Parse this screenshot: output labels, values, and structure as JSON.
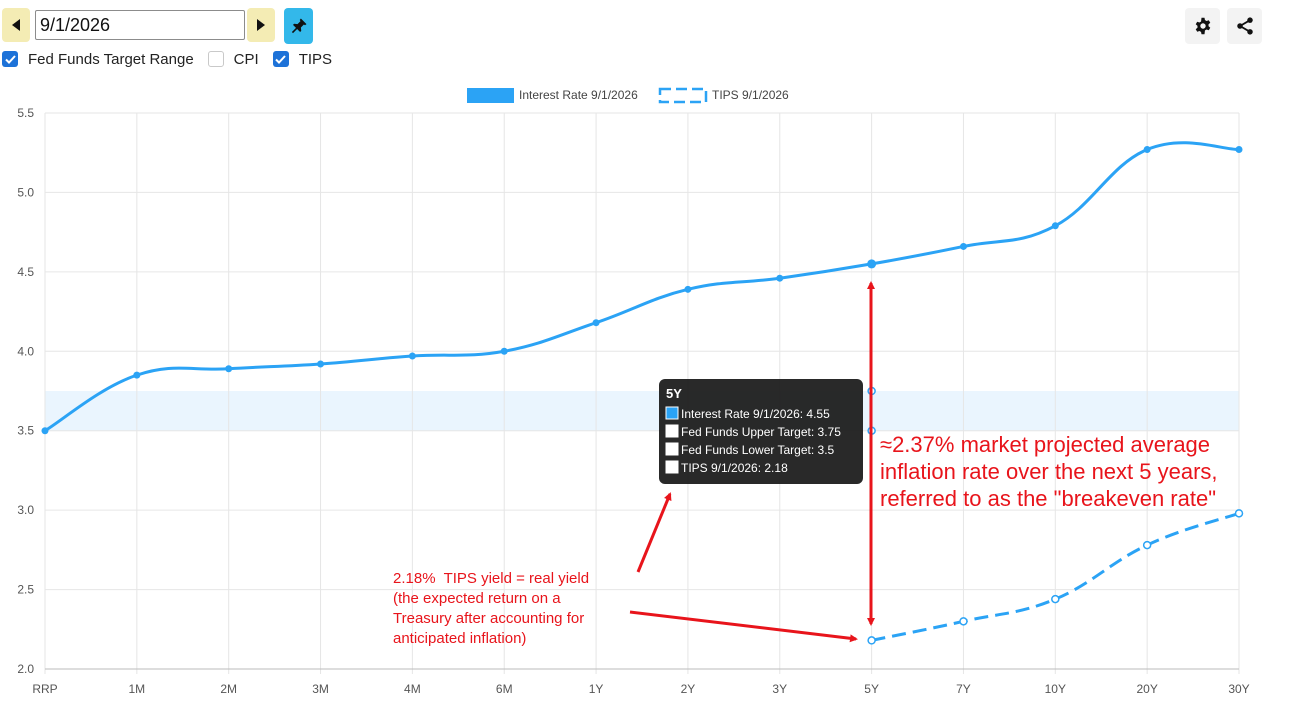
{
  "toolbar": {
    "date_value": "9/1/2026",
    "checkboxes": [
      {
        "label": "Fed Funds Target Range",
        "checked": true
      },
      {
        "label": "CPI",
        "checked": false
      },
      {
        "label": "TIPS",
        "checked": true
      }
    ],
    "icons": {
      "prev": "triangle-left-icon",
      "next": "triangle-right-icon",
      "pin": "pushpin-icon",
      "settings": "gear-icon",
      "share": "share-icon"
    }
  },
  "chart_data": {
    "type": "line",
    "categories": [
      "RRP",
      "1M",
      "2M",
      "3M",
      "4M",
      "6M",
      "1Y",
      "2Y",
      "3Y",
      "5Y",
      "7Y",
      "10Y",
      "20Y",
      "30Y"
    ],
    "ylim": [
      2.0,
      5.5
    ],
    "yticks": [
      "2.0",
      "2.5",
      "3.0",
      "3.5",
      "4.0",
      "4.5",
      "5.0",
      "5.5"
    ],
    "grid": true,
    "legend_position": "top-center",
    "series": [
      {
        "name": "Interest Rate 9/1/2026",
        "style": "solid",
        "color": "#2ba3f5",
        "values": [
          3.5,
          3.85,
          3.89,
          3.92,
          3.97,
          4.0,
          4.18,
          4.39,
          4.46,
          4.55,
          4.66,
          4.79,
          5.27,
          5.27
        ]
      },
      {
        "name": "TIPS 9/1/2026",
        "style": "dashed",
        "color": "#2ba3f5",
        "values": [
          null,
          null,
          null,
          null,
          null,
          null,
          null,
          null,
          null,
          2.18,
          2.3,
          2.44,
          2.78,
          2.98
        ]
      }
    ],
    "fed_funds_band": {
      "lower": 3.5,
      "upper": 3.75,
      "color": "#eaf5fe"
    },
    "tooltip": {
      "title": "5Y",
      "rows": [
        {
          "label": "Interest Rate 9/1/2026: 4.55",
          "swatch": "#2ba3f5"
        },
        {
          "label": "Fed Funds Upper Target: 3.75",
          "swatch": "#ffffff"
        },
        {
          "label": "Fed Funds Lower Target: 3.5",
          "swatch": "#ffffff"
        },
        {
          "label": "TIPS 9/1/2026: 2.18",
          "swatch": "#ffffff"
        }
      ]
    },
    "annotations": {
      "breakeven": [
        "≈2.37% market projected average",
        "inflation rate over the next 5 years,",
        "referred to as the \"breakeven rate\""
      ],
      "tips": [
        "2.18%  TIPS yield = real yield",
        "(the expected return on a",
        "Treasury after accounting for",
        "anticipated inflation)"
      ],
      "color": "#e8141b"
    }
  }
}
